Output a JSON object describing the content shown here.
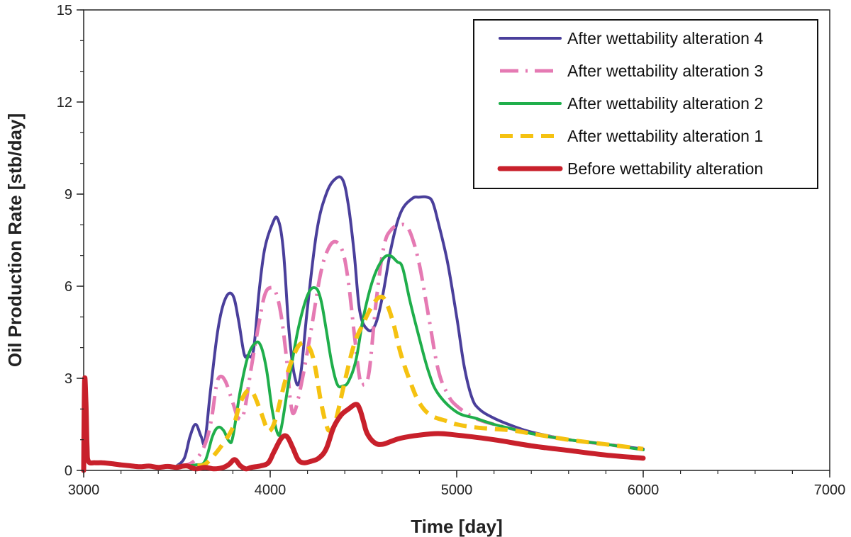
{
  "chart_data": {
    "type": "line",
    "title": "",
    "xlabel": "Time [day]",
    "ylabel": "Oil Production Rate [stb/day]",
    "xlim": [
      3000,
      7000
    ],
    "ylim": [
      0,
      15
    ],
    "xticks": [
      3000,
      4000,
      5000,
      6000,
      7000
    ],
    "yticks": [
      0,
      3,
      6,
      9,
      12,
      15
    ],
    "x_minor_step": 200,
    "y_minor_step": 1,
    "legend_position": "top-right",
    "grid": false,
    "series": [
      {
        "name": "After wettability alteration 4",
        "color": "#4a3f9b",
        "style": "solid",
        "points": [
          [
            3500,
            0.15
          ],
          [
            3540,
            0.4
          ],
          [
            3570,
            1.1
          ],
          [
            3600,
            1.5
          ],
          [
            3630,
            1.1
          ],
          [
            3650,
            0.95
          ],
          [
            3680,
            2.6
          ],
          [
            3720,
            4.6
          ],
          [
            3760,
            5.6
          ],
          [
            3800,
            5.7
          ],
          [
            3830,
            4.9
          ],
          [
            3860,
            3.8
          ],
          [
            3880,
            3.75
          ],
          [
            3910,
            3.9
          ],
          [
            3940,
            5.8
          ],
          [
            3970,
            7.2
          ],
          [
            4010,
            8.0
          ],
          [
            4040,
            8.2
          ],
          [
            4070,
            7.2
          ],
          [
            4100,
            4.6
          ],
          [
            4130,
            3.1
          ],
          [
            4160,
            3.0
          ],
          [
            4200,
            5.3
          ],
          [
            4250,
            7.8
          ],
          [
            4300,
            9.0
          ],
          [
            4350,
            9.5
          ],
          [
            4390,
            9.45
          ],
          [
            4420,
            8.6
          ],
          [
            4450,
            7.1
          ],
          [
            4480,
            5.2
          ],
          [
            4520,
            4.6
          ],
          [
            4560,
            4.7
          ],
          [
            4600,
            5.6
          ],
          [
            4650,
            7.3
          ],
          [
            4700,
            8.4
          ],
          [
            4760,
            8.85
          ],
          [
            4800,
            8.9
          ],
          [
            4840,
            8.9
          ],
          [
            4870,
            8.75
          ],
          [
            4900,
            8.1
          ],
          [
            4950,
            6.8
          ],
          [
            5000,
            5.0
          ],
          [
            5040,
            3.4
          ],
          [
            5080,
            2.4
          ],
          [
            5120,
            2.0
          ],
          [
            5200,
            1.7
          ],
          [
            5300,
            1.45
          ],
          [
            5400,
            1.25
          ],
          [
            5600,
            1.0
          ],
          [
            5800,
            0.85
          ],
          [
            6000,
            0.7
          ]
        ]
      },
      {
        "name": "After wettability alteration 3",
        "color": "#e57ab3",
        "style": "dashdot",
        "points": [
          [
            3500,
            0.12
          ],
          [
            3580,
            0.25
          ],
          [
            3640,
            0.7
          ],
          [
            3680,
            1.5
          ],
          [
            3710,
            2.7
          ],
          [
            3730,
            3.05
          ],
          [
            3760,
            2.9
          ],
          [
            3800,
            2.2
          ],
          [
            3830,
            1.7
          ],
          [
            3860,
            1.9
          ],
          [
            3900,
            3.4
          ],
          [
            3940,
            4.8
          ],
          [
            3970,
            5.7
          ],
          [
            4000,
            5.95
          ],
          [
            4030,
            5.8
          ],
          [
            4060,
            5.0
          ],
          [
            4090,
            3.5
          ],
          [
            4110,
            2.2
          ],
          [
            4130,
            1.9
          ],
          [
            4170,
            2.9
          ],
          [
            4220,
            4.6
          ],
          [
            4270,
            6.4
          ],
          [
            4310,
            7.2
          ],
          [
            4350,
            7.45
          ],
          [
            4390,
            7.1
          ],
          [
            4420,
            6.1
          ],
          [
            4450,
            4.5
          ],
          [
            4480,
            3.0
          ],
          [
            4500,
            2.8
          ],
          [
            4530,
            3.2
          ],
          [
            4570,
            5.6
          ],
          [
            4610,
            7.3
          ],
          [
            4650,
            7.85
          ],
          [
            4700,
            8.0
          ],
          [
            4730,
            7.95
          ],
          [
            4760,
            7.6
          ],
          [
            4800,
            6.7
          ],
          [
            4850,
            5.0
          ],
          [
            4900,
            3.3
          ],
          [
            4950,
            2.5
          ],
          [
            5000,
            2.1
          ],
          [
            5100,
            1.7
          ],
          [
            5200,
            1.5
          ],
          [
            5300,
            1.35
          ],
          [
            5400,
            1.2
          ],
          [
            5600,
            1.0
          ],
          [
            5800,
            0.85
          ],
          [
            6000,
            0.7
          ]
        ]
      },
      {
        "name": "After wettability alteration 2",
        "color": "#1fae4b",
        "style": "solid",
        "points": [
          [
            3500,
            0.12
          ],
          [
            3600,
            0.18
          ],
          [
            3650,
            0.3
          ],
          [
            3690,
            1.1
          ],
          [
            3720,
            1.4
          ],
          [
            3750,
            1.3
          ],
          [
            3780,
            0.95
          ],
          [
            3800,
            1.1
          ],
          [
            3840,
            2.6
          ],
          [
            3880,
            3.7
          ],
          [
            3920,
            4.15
          ],
          [
            3950,
            4.05
          ],
          [
            3980,
            3.3
          ],
          [
            4010,
            2.0
          ],
          [
            4040,
            1.2
          ],
          [
            4060,
            1.4
          ],
          [
            4100,
            2.9
          ],
          [
            4150,
            4.6
          ],
          [
            4200,
            5.7
          ],
          [
            4240,
            5.95
          ],
          [
            4270,
            5.6
          ],
          [
            4300,
            4.6
          ],
          [
            4330,
            3.5
          ],
          [
            4360,
            2.8
          ],
          [
            4390,
            2.75
          ],
          [
            4420,
            2.9
          ],
          [
            4460,
            3.6
          ],
          [
            4500,
            5.0
          ],
          [
            4550,
            6.2
          ],
          [
            4600,
            6.85
          ],
          [
            4640,
            7.0
          ],
          [
            4680,
            6.8
          ],
          [
            4710,
            6.6
          ],
          [
            4750,
            5.5
          ],
          [
            4800,
            4.3
          ],
          [
            4850,
            3.2
          ],
          [
            4900,
            2.5
          ],
          [
            5000,
            1.9
          ],
          [
            5100,
            1.7
          ],
          [
            5200,
            1.5
          ],
          [
            5300,
            1.35
          ],
          [
            5400,
            1.2
          ],
          [
            5600,
            1.0
          ],
          [
            5800,
            0.85
          ],
          [
            6000,
            0.67
          ]
        ]
      },
      {
        "name": "After wettability alteration 1",
        "color": "#f5c211",
        "style": "dashed",
        "points": [
          [
            3500,
            0.12
          ],
          [
            3600,
            0.15
          ],
          [
            3650,
            0.2
          ],
          [
            3700,
            0.5
          ],
          [
            3750,
            0.9
          ],
          [
            3800,
            1.4
          ],
          [
            3840,
            2.2
          ],
          [
            3880,
            2.6
          ],
          [
            3910,
            2.5
          ],
          [
            3950,
            1.9
          ],
          [
            3980,
            1.4
          ],
          [
            4000,
            1.3
          ],
          [
            4030,
            1.7
          ],
          [
            4080,
            2.9
          ],
          [
            4130,
            3.8
          ],
          [
            4170,
            4.15
          ],
          [
            4210,
            4.0
          ],
          [
            4240,
            3.4
          ],
          [
            4270,
            2.3
          ],
          [
            4300,
            1.5
          ],
          [
            4320,
            1.3
          ],
          [
            4350,
            1.6
          ],
          [
            4400,
            2.9
          ],
          [
            4450,
            4.1
          ],
          [
            4500,
            4.8
          ],
          [
            4550,
            5.4
          ],
          [
            4590,
            5.65
          ],
          [
            4620,
            5.5
          ],
          [
            4660,
            4.8
          ],
          [
            4700,
            3.8
          ],
          [
            4750,
            2.9
          ],
          [
            4800,
            2.2
          ],
          [
            4860,
            1.8
          ],
          [
            4950,
            1.6
          ],
          [
            5000,
            1.5
          ],
          [
            5100,
            1.4
          ],
          [
            5200,
            1.35
          ],
          [
            5300,
            1.3
          ],
          [
            5400,
            1.2
          ],
          [
            5600,
            1.0
          ],
          [
            5800,
            0.85
          ],
          [
            6000,
            0.7
          ]
        ]
      },
      {
        "name": "Before wettability alteration",
        "color": "#c8202b",
        "style": "thick",
        "points": [
          [
            3000,
            0.0
          ],
          [
            3005,
            2.9
          ],
          [
            3012,
            2.2
          ],
          [
            3018,
            0.8
          ],
          [
            3025,
            0.3
          ],
          [
            3060,
            0.25
          ],
          [
            3100,
            0.25
          ],
          [
            3150,
            0.22
          ],
          [
            3200,
            0.18
          ],
          [
            3250,
            0.15
          ],
          [
            3300,
            0.12
          ],
          [
            3350,
            0.14
          ],
          [
            3400,
            0.1
          ],
          [
            3450,
            0.13
          ],
          [
            3500,
            0.1
          ],
          [
            3550,
            0.15
          ],
          [
            3600,
            0.05
          ],
          [
            3650,
            0.1
          ],
          [
            3700,
            0.05
          ],
          [
            3750,
            0.1
          ],
          [
            3780,
            0.2
          ],
          [
            3810,
            0.35
          ],
          [
            3840,
            0.15
          ],
          [
            3870,
            0.05
          ],
          [
            3900,
            0.1
          ],
          [
            3950,
            0.15
          ],
          [
            3990,
            0.25
          ],
          [
            4020,
            0.6
          ],
          [
            4060,
            1.05
          ],
          [
            4090,
            1.1
          ],
          [
            4120,
            0.75
          ],
          [
            4150,
            0.35
          ],
          [
            4180,
            0.25
          ],
          [
            4220,
            0.3
          ],
          [
            4260,
            0.4
          ],
          [
            4300,
            0.7
          ],
          [
            4340,
            1.4
          ],
          [
            4380,
            1.8
          ],
          [
            4420,
            2.0
          ],
          [
            4460,
            2.15
          ],
          [
            4480,
            2.0
          ],
          [
            4500,
            1.6
          ],
          [
            4520,
            1.2
          ],
          [
            4560,
            0.9
          ],
          [
            4600,
            0.85
          ],
          [
            4650,
            0.95
          ],
          [
            4700,
            1.05
          ],
          [
            4800,
            1.15
          ],
          [
            4900,
            1.2
          ],
          [
            5000,
            1.15
          ],
          [
            5200,
            1.0
          ],
          [
            5400,
            0.8
          ],
          [
            5600,
            0.65
          ],
          [
            5800,
            0.5
          ],
          [
            6000,
            0.4
          ]
        ]
      }
    ]
  }
}
